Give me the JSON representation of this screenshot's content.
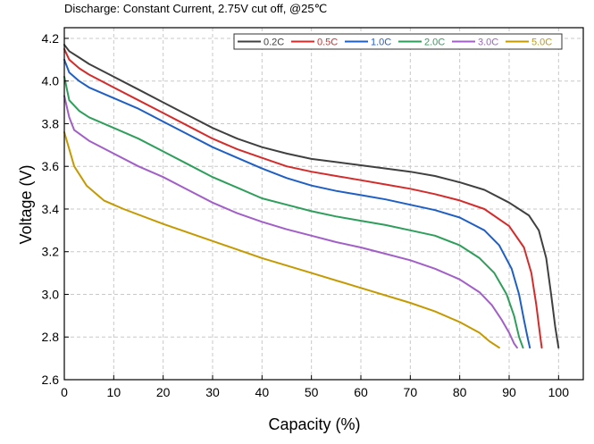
{
  "chart_data": {
    "type": "line",
    "title": "Discharge: Constant Current, 2.75V cut off, @25℃",
    "xlabel": "Capacity  (%)",
    "ylabel": "Voltage  (V)",
    "xlim": [
      0,
      105
    ],
    "ylim": [
      2.6,
      4.25
    ],
    "xticks": [
      "0",
      "10",
      "20",
      "30",
      "40",
      "50",
      "60",
      "70",
      "80",
      "90",
      "100"
    ],
    "yticks": [
      "2.6",
      "2.8",
      "3.0",
      "3.2",
      "3.4",
      "3.6",
      "3.8",
      "4.0",
      "4.2"
    ],
    "grid": true,
    "legend_position": "top-right",
    "series": [
      {
        "name": "0.2C",
        "color": "#404040",
        "x": [
          0,
          1,
          3,
          5,
          10,
          15,
          20,
          25,
          30,
          35,
          40,
          45,
          50,
          55,
          60,
          65,
          70,
          75,
          80,
          85,
          90,
          94,
          96,
          97.5,
          98.5,
          99.3,
          100
        ],
        "y": [
          4.17,
          4.14,
          4.11,
          4.08,
          4.02,
          3.96,
          3.9,
          3.84,
          3.78,
          3.73,
          3.69,
          3.66,
          3.635,
          3.62,
          3.605,
          3.59,
          3.575,
          3.555,
          3.525,
          3.49,
          3.43,
          3.37,
          3.3,
          3.17,
          3.0,
          2.85,
          2.75
        ]
      },
      {
        "name": "0.5C",
        "color": "#d42b2b",
        "x": [
          0,
          1,
          3,
          5,
          10,
          15,
          20,
          25,
          30,
          35,
          40,
          45,
          50,
          55,
          60,
          65,
          70,
          75,
          80,
          85,
          90,
          93,
          94.5,
          95.5,
          96.2,
          96.6
        ],
        "y": [
          4.15,
          4.1,
          4.06,
          4.03,
          3.97,
          3.91,
          3.85,
          3.79,
          3.73,
          3.68,
          3.64,
          3.6,
          3.575,
          3.555,
          3.535,
          3.515,
          3.495,
          3.47,
          3.44,
          3.4,
          3.32,
          3.22,
          3.1,
          2.95,
          2.82,
          2.75
        ]
      },
      {
        "name": "1.0C",
        "color": "#1f5fc4",
        "x": [
          0,
          1,
          3,
          5,
          10,
          15,
          20,
          25,
          30,
          35,
          40,
          45,
          50,
          55,
          60,
          65,
          70,
          75,
          80,
          85,
          88,
          90.5,
          92,
          93,
          93.7,
          94.2
        ],
        "y": [
          4.1,
          4.04,
          4.0,
          3.97,
          3.92,
          3.87,
          3.81,
          3.75,
          3.69,
          3.64,
          3.59,
          3.545,
          3.51,
          3.485,
          3.465,
          3.445,
          3.42,
          3.395,
          3.36,
          3.3,
          3.23,
          3.12,
          3.0,
          2.88,
          2.8,
          2.75
        ]
      },
      {
        "name": "2.0C",
        "color": "#2e9e5b",
        "x": [
          0,
          1,
          3,
          5,
          10,
          15,
          20,
          25,
          30,
          35,
          40,
          45,
          50,
          55,
          60,
          65,
          70,
          75,
          80,
          84,
          87,
          89.5,
          91,
          92,
          92.8
        ],
        "y": [
          4.02,
          3.91,
          3.86,
          3.83,
          3.78,
          3.73,
          3.67,
          3.61,
          3.55,
          3.5,
          3.45,
          3.42,
          3.39,
          3.365,
          3.345,
          3.325,
          3.3,
          3.275,
          3.23,
          3.17,
          3.1,
          3.0,
          2.9,
          2.8,
          2.75
        ]
      },
      {
        "name": "3.0C",
        "color": "#a15fc7",
        "x": [
          0,
          1,
          2,
          5,
          10,
          15,
          20,
          25,
          30,
          35,
          40,
          45,
          50,
          55,
          60,
          65,
          70,
          75,
          80,
          84,
          86.5,
          88.5,
          90,
          91,
          91.6
        ],
        "y": [
          3.93,
          3.83,
          3.77,
          3.72,
          3.66,
          3.6,
          3.55,
          3.49,
          3.43,
          3.38,
          3.34,
          3.305,
          3.275,
          3.245,
          3.22,
          3.19,
          3.16,
          3.12,
          3.07,
          3.01,
          2.95,
          2.88,
          2.82,
          2.77,
          2.75
        ]
      },
      {
        "name": "5.0C",
        "color": "#c49a00",
        "x": [
          0,
          2,
          4.5,
          6,
          8,
          12,
          20,
          30,
          40,
          50,
          60,
          70,
          75,
          80,
          84,
          86,
          88
        ],
        "y": [
          3.76,
          3.6,
          3.51,
          3.48,
          3.44,
          3.4,
          3.33,
          3.25,
          3.17,
          3.1,
          3.03,
          2.96,
          2.92,
          2.87,
          2.82,
          2.78,
          2.75
        ]
      }
    ]
  }
}
